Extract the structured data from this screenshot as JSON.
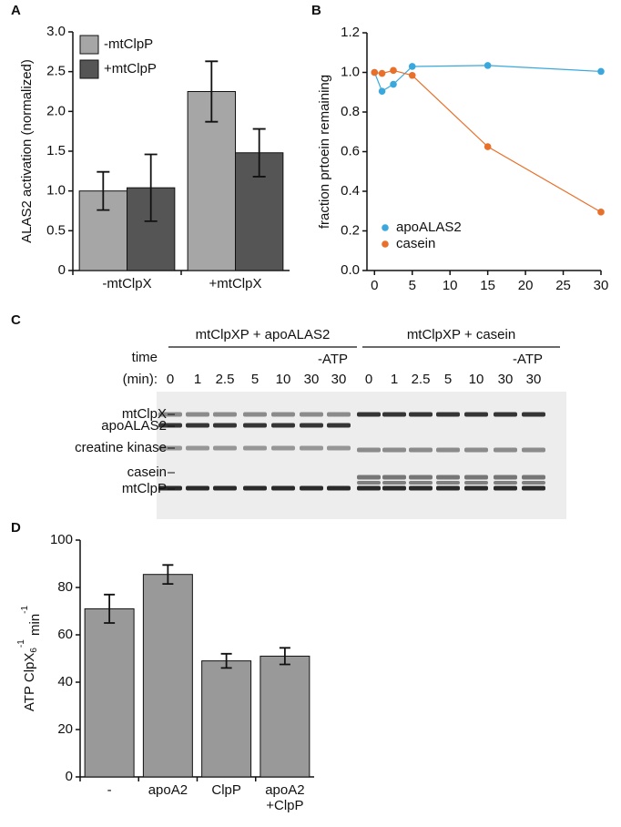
{
  "panels": [
    "A",
    "B",
    "C",
    "D"
  ],
  "chart_data": [
    {
      "type": "bar",
      "ylabel": "ALAS2 activation (normalized)",
      "categories": [
        "-mtClpX",
        "+mtClpX"
      ],
      "series": [
        {
          "name": "-mtClpP",
          "color": "#a6a6a6",
          "values": [
            1.0,
            2.25
          ],
          "errors": [
            0.24,
            0.38
          ]
        },
        {
          "name": "+mtClpP",
          "color": "#555555",
          "values": [
            1.04,
            1.48
          ],
          "errors": [
            0.42,
            0.3
          ]
        }
      ],
      "ylim": [
        0,
        3
      ],
      "yticks": [
        0,
        0.5,
        {
          "value": 1,
          "label": "1.0"
        },
        1.5,
        {
          "value": 2,
          "label": "2.0"
        },
        2.5,
        {
          "value": 3,
          "label": "3.0"
        }
      ],
      "legend": "upper left"
    },
    {
      "type": "line",
      "ylabel": "fraction prtoein remaining",
      "x": [
        0,
        1,
        2.5,
        5,
        15,
        30
      ],
      "series": [
        {
          "name": "apoALAS2",
          "color": "#3aa8dc",
          "values": [
            1.0,
            0.905,
            0.94,
            1.03,
            1.035,
            1.005
          ]
        },
        {
          "name": "casein",
          "color": "#e8702a",
          "values": [
            1.0,
            0.995,
            1.01,
            0.985,
            0.625,
            0.295
          ]
        }
      ],
      "xlim": [
        -1,
        30
      ],
      "xticks": [
        0,
        5,
        10,
        15,
        20,
        25,
        30
      ],
      "ylim": [
        0,
        1.2
      ],
      "yticks": [
        {
          "value": 0,
          "label": "0.0"
        },
        0.2,
        0.4,
        0.6,
        0.8,
        {
          "value": 1,
          "label": "1.0"
        },
        1.2
      ],
      "legend": "lower left"
    },
    {
      "type": "bar",
      "ylabel": {
        "text": "ATP ClpX",
        "sub": "6",
        "sup": "-1",
        "unit": " min",
        "unit_sup": "-1"
      },
      "categories": [
        "-",
        "apoA2",
        "ClpP",
        "apoA2\n+ClpP"
      ],
      "values": [
        71,
        85.5,
        49,
        51
      ],
      "errors": [
        6,
        4,
        3,
        3.5
      ],
      "color": "#999999",
      "ylim": [
        0,
        100
      ],
      "yticks": [
        0,
        20,
        40,
        60,
        80,
        100
      ]
    }
  ],
  "gel": {
    "groups": [
      {
        "title": "mtClpXP + apoALAS2",
        "lanes": [
          "0",
          "1",
          "2.5",
          "5",
          "10",
          "30",
          "30"
        ]
      },
      {
        "title": "mtClpXP + casein",
        "lanes": [
          "0",
          "1",
          "2.5",
          "5",
          "10",
          "30",
          "30"
        ]
      }
    ],
    "row_labels": [
      "time",
      "(min):"
    ],
    "minus_atp": "-ATP",
    "bands": [
      "mtClpX",
      "apoALAS2",
      "creatine kinase",
      "casein",
      "mtClpP"
    ]
  }
}
